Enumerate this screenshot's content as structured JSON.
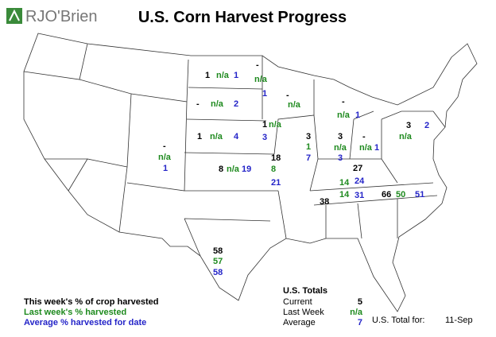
{
  "logo": "RJO'Brien",
  "title": "U.S. Corn Harvest Progress",
  "states": [
    {
      "current": 1,
      "last": "n/a",
      "average": 1
    },
    {
      "current": "-",
      "last": "n/a",
      "average": 2
    },
    {
      "current": 1,
      "last": "n/a",
      "average": 4
    },
    {
      "current": "-",
      "last": "n/a",
      "average": 1
    },
    {
      "current": "-",
      "last": "n/a"
    },
    {
      "current": "-",
      "last": "n/a",
      "average": 1
    },
    {
      "current": 1,
      "last": "n/a",
      "average": 3
    },
    {
      "current": 3,
      "last": 1,
      "average": 7
    },
    {
      "current": 3,
      "last": "n/a",
      "average": 3
    },
    {
      "current": "-",
      "last": "n/a",
      "average": 1
    },
    {
      "current": 3,
      "last": "n/a",
      "average": 2
    },
    {
      "current": "-",
      "last": "n/a",
      "average": 1
    },
    {
      "current": 8,
      "last": "n/a",
      "average": 19
    },
    {
      "current": 18,
      "last": 8,
      "average": 21
    },
    {
      "current": 27,
      "last": 14,
      "average": 24
    },
    {
      "current": 38,
      "last": 14,
      "average": 31
    },
    {
      "current": 66,
      "last": 50,
      "average": 51
    },
    {
      "current": 58,
      "last": 57,
      "average": 58
    }
  ],
  "legend": {
    "current": "This week's % of crop harvested",
    "last": "Last week's % harvested",
    "average": "Average % harvested for date"
  },
  "totals": {
    "title": "U.S. Totals",
    "rows": [
      [
        "Current",
        5
      ],
      [
        "Last Week",
        "n/a"
      ],
      [
        "Average",
        7
      ]
    ],
    "date_label": "U.S. Total for:",
    "date": "11-Sep"
  }
}
